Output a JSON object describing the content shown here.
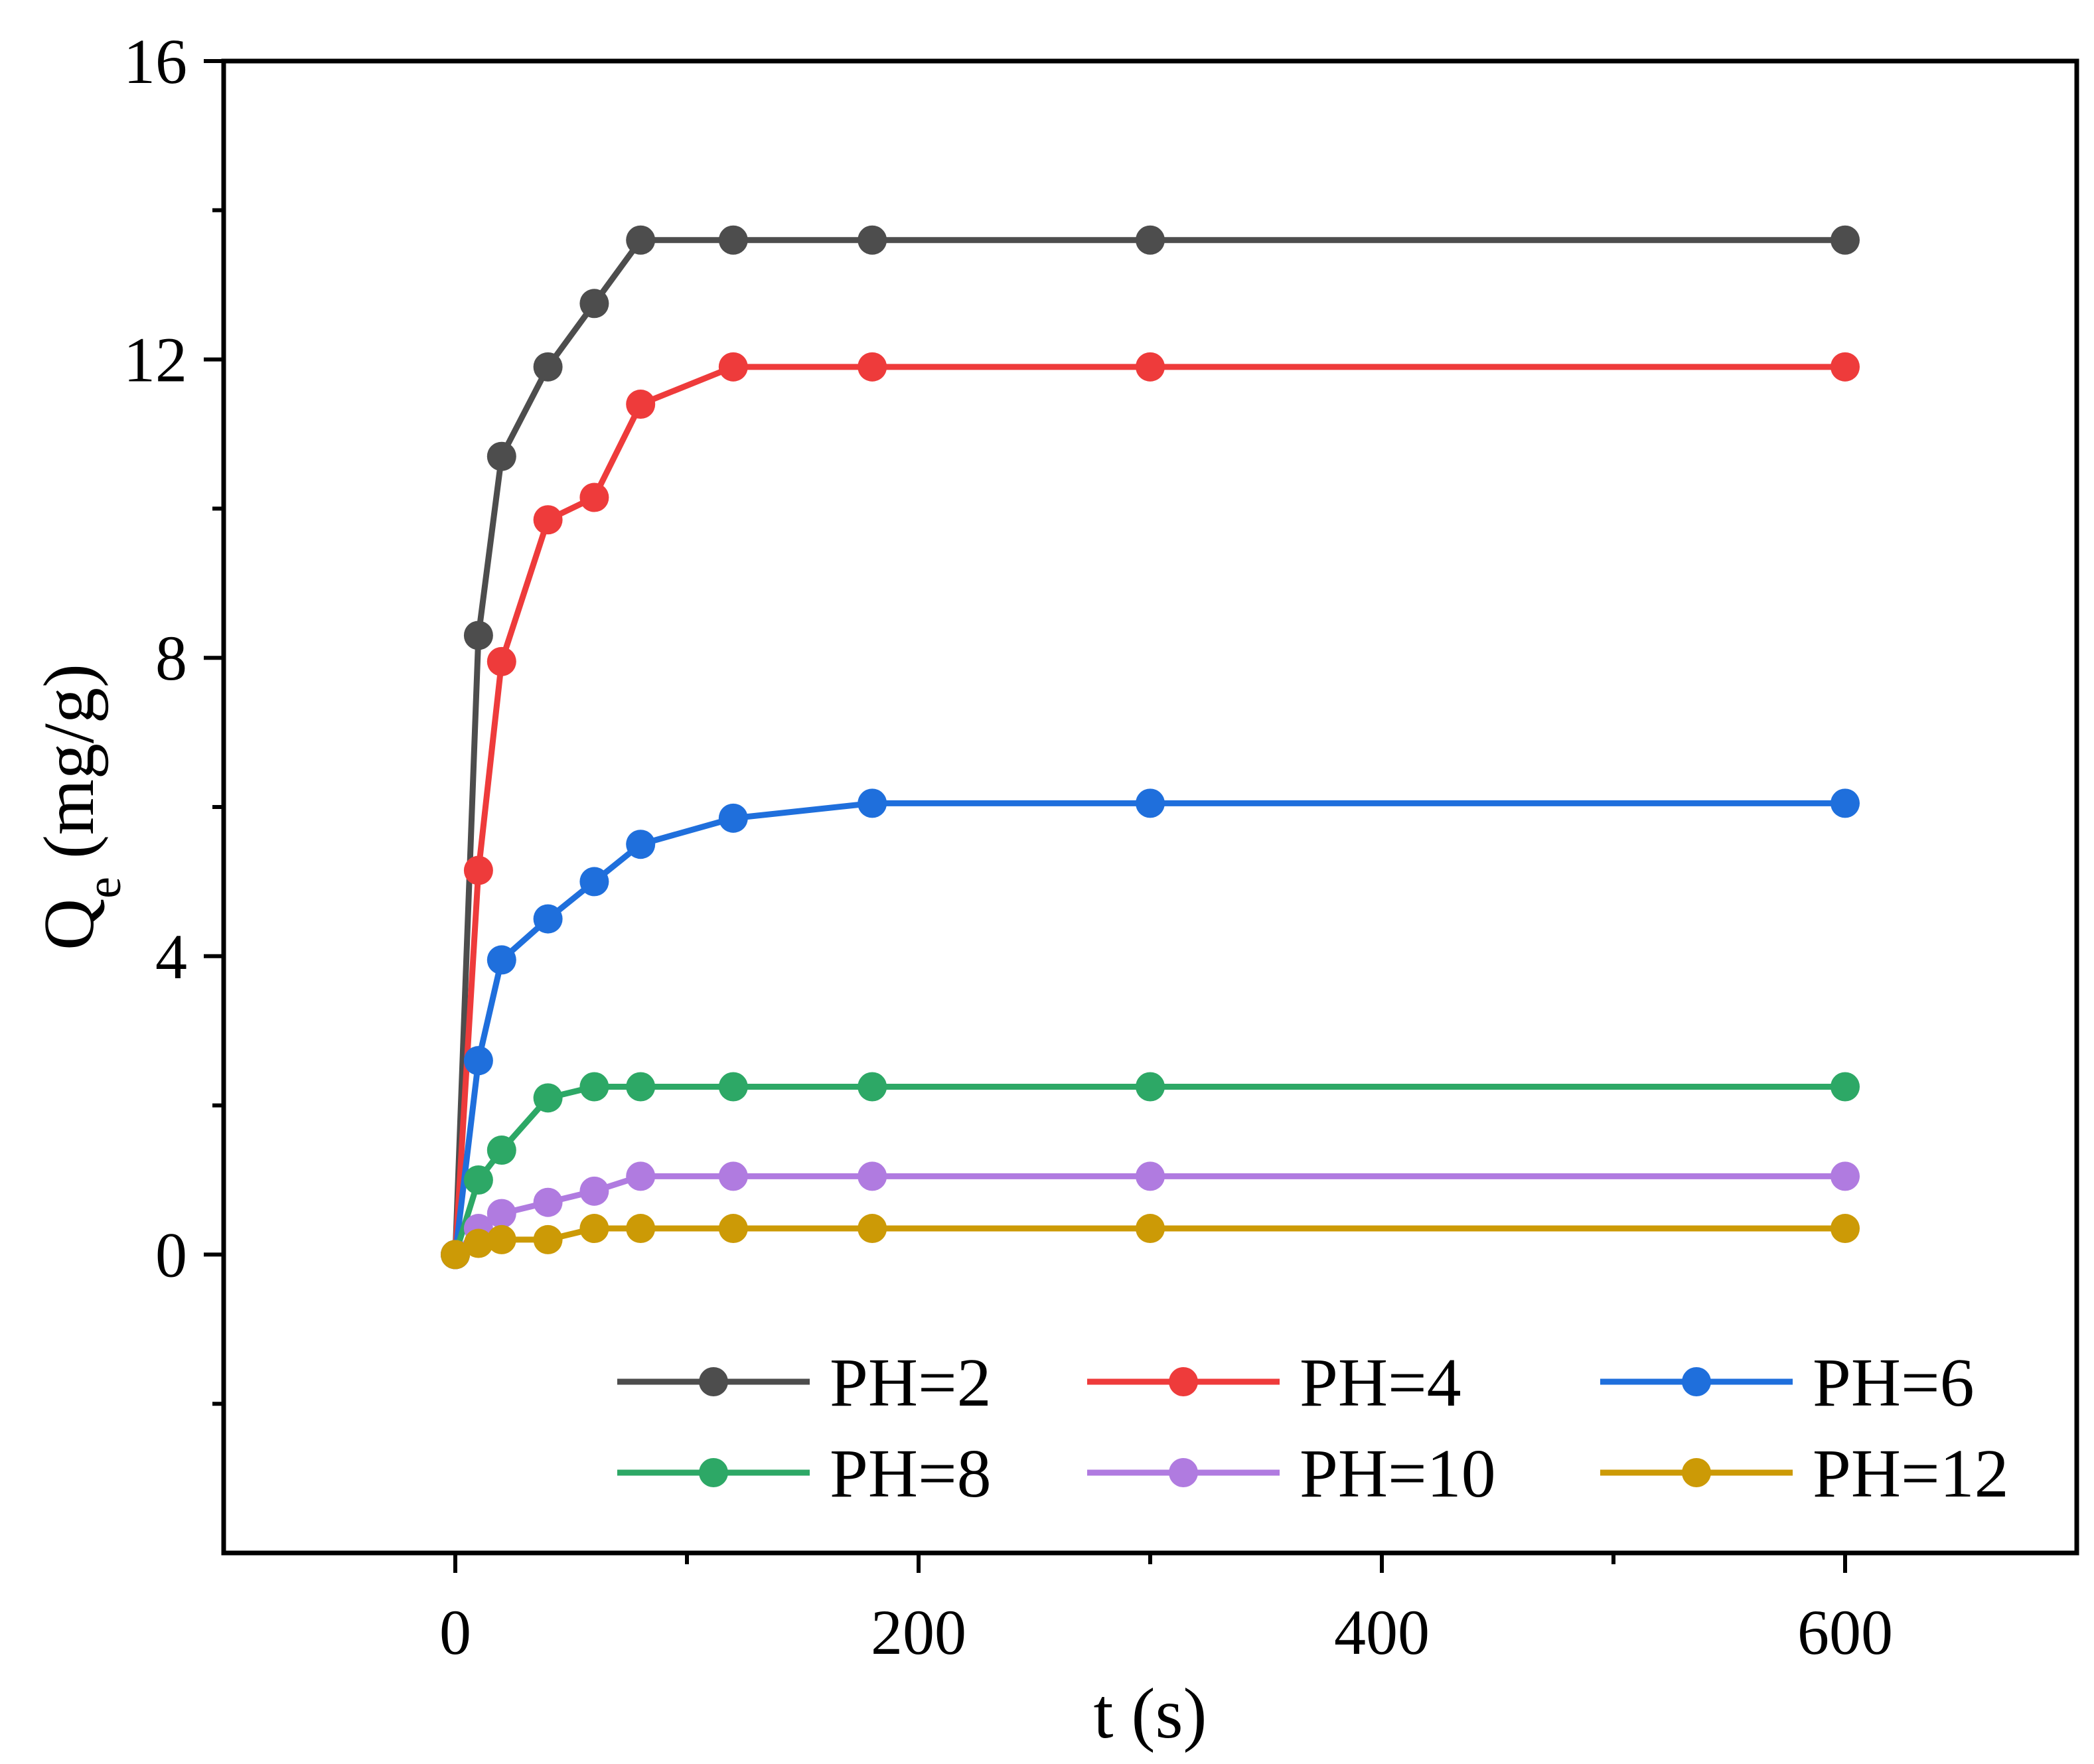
{
  "chart_data": {
    "type": "line",
    "title": "",
    "xlabel": "t (s)",
    "ylabel": {
      "main": "Q",
      "subscript": "e",
      "unit": " (mg/g)"
    },
    "xlim": [
      -100,
      700
    ],
    "ylim": [
      -4,
      16
    ],
    "xticks": [
      0,
      200,
      400,
      600
    ],
    "xtick_labels": [
      "0",
      "200",
      "400",
      "600"
    ],
    "xminor_ticks": [
      100,
      300,
      500
    ],
    "yticks": [
      0,
      4,
      8,
      12,
      16
    ],
    "ytick_labels": [
      "0",
      "4",
      "8",
      "12",
      "16"
    ],
    "yminor_ticks": [
      -2,
      2,
      6,
      10,
      14
    ],
    "grid": false,
    "legend_position": "bottom",
    "x": [
      0,
      10,
      20,
      40,
      60,
      80,
      120,
      180,
      300,
      600
    ],
    "series": [
      {
        "name": "PH=2",
        "color": "#4d4d4d",
        "values": [
          0,
          8.3,
          10.7,
          11.9,
          12.75,
          13.6,
          13.6,
          13.6,
          13.6,
          13.6
        ]
      },
      {
        "name": "PH=4",
        "color": "#ee3b3b",
        "values": [
          0,
          5.15,
          7.95,
          9.85,
          10.15,
          11.4,
          11.9,
          11.9,
          11.9,
          11.9
        ]
      },
      {
        "name": "PH=6",
        "color": "#1f6fdc",
        "values": [
          0,
          2.6,
          3.95,
          4.5,
          5.0,
          5.5,
          5.85,
          6.05,
          6.05,
          6.05
        ]
      },
      {
        "name": "PH=8",
        "color": "#2da866",
        "values": [
          0,
          1.0,
          1.4,
          2.1,
          2.25,
          2.25,
          2.25,
          2.25,
          2.25,
          2.25
        ]
      },
      {
        "name": "PH=10",
        "color": "#b07be0",
        "values": [
          0,
          0.35,
          0.55,
          0.7,
          0.85,
          1.05,
          1.05,
          1.05,
          1.05,
          1.05
        ]
      },
      {
        "name": "PH=12",
        "color": "#cc9a06",
        "values": [
          0,
          0.15,
          0.2,
          0.2,
          0.35,
          0.35,
          0.35,
          0.35,
          0.35,
          0.35
        ]
      }
    ]
  }
}
